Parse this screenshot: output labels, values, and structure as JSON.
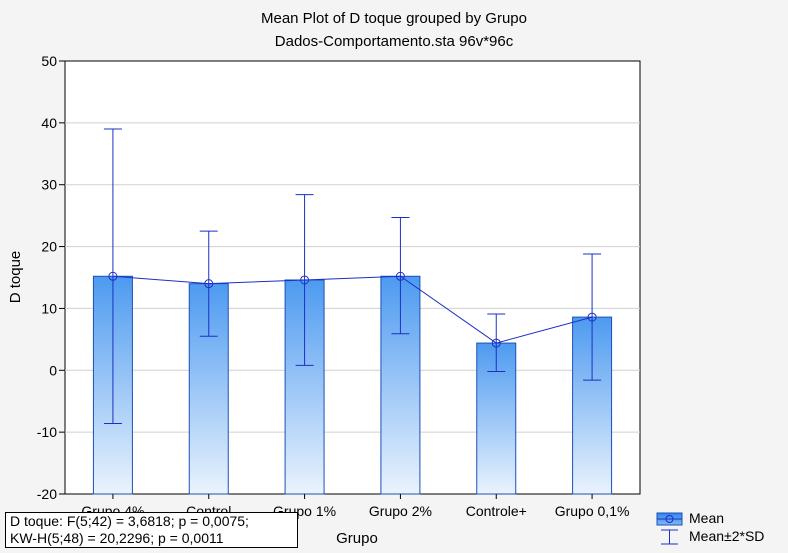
{
  "chart_data": {
    "type": "bar",
    "title": "Mean Plot of D toque grouped by  Grupo",
    "subtitle": "Dados-Comportamento.sta 96v*96c",
    "xlabel": "Grupo",
    "ylabel": "D toque",
    "ylim": [
      -20,
      50
    ],
    "yticks": [
      "50",
      "40",
      "30",
      "20",
      "10",
      "0",
      "-10",
      "-20"
    ],
    "grid": true,
    "categories": [
      "Grupo 4%",
      "Control",
      "Grupo 1%",
      "Grupo 2%",
      "Controle+",
      "Grupo 0,1%"
    ],
    "series": [
      {
        "name": "Mean",
        "values": [
          15.2,
          14.0,
          14.6,
          15.2,
          4.4,
          8.6
        ]
      },
      {
        "name": "Mean±2*SD",
        "lower": [
          -8.6,
          5.5,
          0.8,
          5.9,
          -0.2,
          -1.6
        ],
        "upper": [
          39.0,
          22.5,
          28.4,
          24.7,
          9.1,
          18.8
        ]
      }
    ],
    "legend": {
      "position": "bottom-right",
      "items": [
        "Mean",
        "Mean±2*SD"
      ]
    },
    "annotation": [
      "D toque:   F(5;42) = 3,6818; p = 0,0075;",
      "KW-H(5;48) = 20,2296; p = 0,0011"
    ],
    "colors": {
      "bar_top": "#4d9af0",
      "bar_bottom": "#eaf3fd",
      "bar_edge": "#1c50b8",
      "line": "#1c2fc8",
      "grid": "#d0d0d0"
    }
  }
}
